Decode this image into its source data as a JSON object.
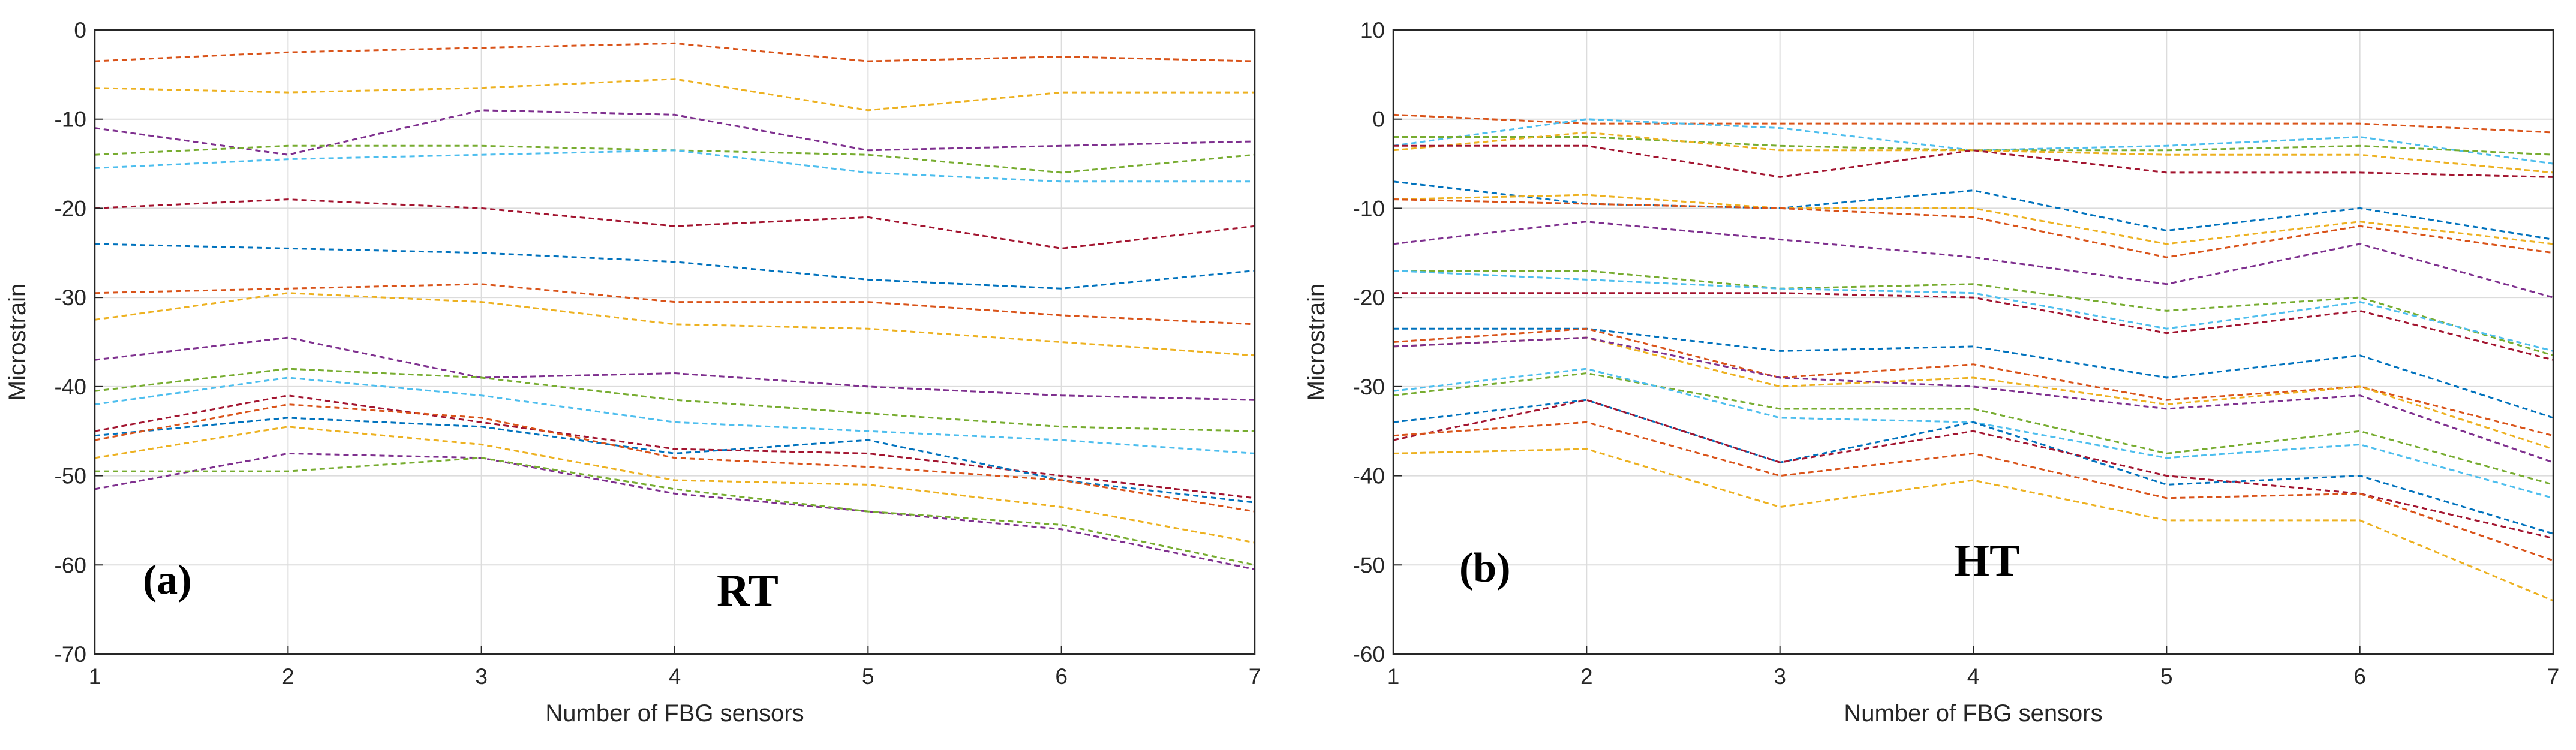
{
  "chart_data": [
    {
      "type": "line",
      "panel_label": "(a)",
      "condition_label": "RT",
      "xlabel": "Number of FBG sensors",
      "ylabel": "Microstrain",
      "xlim": [
        1,
        7
      ],
      "ylim": [
        -70,
        0
      ],
      "x_ticks": [
        1,
        2,
        3,
        4,
        5,
        6,
        7
      ],
      "y_ticks": [
        0,
        -10,
        -20,
        -30,
        -40,
        -50,
        -60,
        -70
      ],
      "grid": true,
      "x": [
        1,
        2,
        3,
        4,
        5,
        6,
        7
      ],
      "series": [
        {
          "name": "s1",
          "color": "#0072BD",
          "values": [
            0,
            0,
            0,
            0,
            0,
            0,
            0
          ]
        },
        {
          "name": "s2",
          "color": "#D95319",
          "values": [
            -3.5,
            -2.5,
            -2,
            -1.5,
            -3.5,
            -3,
            -3.5
          ]
        },
        {
          "name": "s3",
          "color": "#EDB120",
          "values": [
            -6.5,
            -7,
            -6.5,
            -5.5,
            -9,
            -7,
            -7
          ]
        },
        {
          "name": "s4",
          "color": "#7E2F8E",
          "values": [
            -11,
            -14,
            -9,
            -9.5,
            -13.5,
            -13,
            -12.5
          ]
        },
        {
          "name": "s5",
          "color": "#77AC30",
          "values": [
            -14,
            -13,
            -13,
            -13.5,
            -14,
            -16,
            -14
          ]
        },
        {
          "name": "s6",
          "color": "#4DBEEE",
          "values": [
            -15.5,
            -14.5,
            -14,
            -13.5,
            -16,
            -17,
            -17
          ]
        },
        {
          "name": "s7",
          "color": "#A2142F",
          "values": [
            -20,
            -19,
            -20,
            -22,
            -21,
            -24.5,
            -22
          ]
        },
        {
          "name": "s8",
          "color": "#0072BD",
          "values": [
            -24,
            -24.5,
            -25,
            -26,
            -28,
            -29,
            -27
          ]
        },
        {
          "name": "s9",
          "color": "#D95319",
          "values": [
            -29.5,
            -29,
            -28.5,
            -30.5,
            -30.5,
            -32,
            -33
          ]
        },
        {
          "name": "s10",
          "color": "#EDB120",
          "values": [
            -32.5,
            -29.5,
            -30.5,
            -33,
            -33.5,
            -35,
            -36.5
          ]
        },
        {
          "name": "s11",
          "color": "#7E2F8E",
          "values": [
            -37,
            -34.5,
            -39,
            -38.5,
            -40,
            -41,
            -41.5
          ]
        },
        {
          "name": "s12",
          "color": "#77AC30",
          "values": [
            -40.5,
            -38,
            -39,
            -41.5,
            -43,
            -44.5,
            -45
          ]
        },
        {
          "name": "s13",
          "color": "#4DBEEE",
          "values": [
            -42,
            -39,
            -41,
            -44,
            -45,
            -46,
            -47.5
          ]
        },
        {
          "name": "s14",
          "color": "#A2142F",
          "values": [
            -45,
            -41,
            -44,
            -47,
            -47.5,
            -50,
            -52.5
          ]
        },
        {
          "name": "s15",
          "color": "#0072BD",
          "values": [
            -45.5,
            -43.5,
            -44.5,
            -47.5,
            -46,
            -50.5,
            -53
          ]
        },
        {
          "name": "s16",
          "color": "#D95319",
          "values": [
            -46,
            -42,
            -43.5,
            -48,
            -49,
            -50.5,
            -54
          ]
        },
        {
          "name": "s17",
          "color": "#EDB120",
          "values": [
            -48,
            -44.5,
            -46.5,
            -50.5,
            -51,
            -53.5,
            -57.5
          ]
        },
        {
          "name": "s18",
          "color": "#7E2F8E",
          "values": [
            -51.5,
            -47.5,
            -48,
            -52,
            -54,
            -56,
            -60.5
          ]
        },
        {
          "name": "s19",
          "color": "#77AC30",
          "values": [
            -49.5,
            -49.5,
            -48,
            -51.5,
            -54,
            -55.5,
            -60
          ]
        }
      ]
    },
    {
      "type": "line",
      "panel_label": "(b)",
      "condition_label": "HT",
      "xlabel": "Number of FBG sensors",
      "ylabel": "Microstrain",
      "xlim": [
        1,
        7
      ],
      "ylim": [
        -60,
        10
      ],
      "x_ticks": [
        1,
        2,
        3,
        4,
        5,
        6,
        7
      ],
      "y_ticks": [
        10,
        0,
        -10,
        -20,
        -30,
        -40,
        -50,
        -60
      ],
      "grid": true,
      "x": [
        1,
        2,
        3,
        4,
        5,
        6,
        7
      ],
      "series": [
        {
          "name": "s1",
          "color": "#D95319",
          "values": [
            0.5,
            -0.5,
            -0.5,
            -0.5,
            -0.5,
            -0.5,
            -1.5
          ]
        },
        {
          "name": "s2",
          "color": "#4DBEEE",
          "values": [
            -3,
            0,
            -1,
            -3.5,
            -3,
            -2,
            -5
          ]
        },
        {
          "name": "s3",
          "color": "#77AC30",
          "values": [
            -2,
            -2,
            -3,
            -3.5,
            -3.5,
            -3,
            -4
          ]
        },
        {
          "name": "s4",
          "color": "#EDB120",
          "values": [
            -3.5,
            -1.5,
            -3.5,
            -3.5,
            -4,
            -4,
            -6
          ]
        },
        {
          "name": "s5",
          "color": "#A2142F",
          "values": [
            -3,
            -3,
            -6.5,
            -3.5,
            -6,
            -6,
            -6.5
          ]
        },
        {
          "name": "s6",
          "color": "#0072BD",
          "values": [
            -7,
            -9.5,
            -10,
            -8,
            -12.5,
            -10,
            -13.5
          ]
        },
        {
          "name": "s7",
          "color": "#EDB120",
          "values": [
            -9,
            -8.5,
            -10,
            -10,
            -14,
            -11.5,
            -14
          ]
        },
        {
          "name": "s8",
          "color": "#D95319",
          "values": [
            -9,
            -9.5,
            -10,
            -11,
            -15.5,
            -12,
            -15
          ]
        },
        {
          "name": "s9",
          "color": "#7E2F8E",
          "values": [
            -14,
            -11.5,
            -13.5,
            -15.5,
            -18.5,
            -14,
            -20
          ]
        },
        {
          "name": "s10",
          "color": "#77AC30",
          "values": [
            -17,
            -17,
            -19,
            -18.5,
            -21.5,
            -20,
            -26.5
          ]
        },
        {
          "name": "s11",
          "color": "#4DBEEE",
          "values": [
            -17,
            -18,
            -19,
            -19.5,
            -23.5,
            -20.5,
            -26
          ]
        },
        {
          "name": "s12",
          "color": "#A2142F",
          "values": [
            -19.5,
            -19.5,
            -19.5,
            -20,
            -24,
            -21.5,
            -27
          ]
        },
        {
          "name": "s13",
          "color": "#0072BD",
          "values": [
            -23.5,
            -23.5,
            -26,
            -25.5,
            -29,
            -26.5,
            -33.5
          ]
        },
        {
          "name": "s14",
          "color": "#D95319",
          "values": [
            -25,
            -23.5,
            -29,
            -27.5,
            -31.5,
            -30,
            -35.5
          ]
        },
        {
          "name": "s15",
          "color": "#EDB120",
          "values": [
            -25.5,
            -24.5,
            -30,
            -29,
            -32,
            -30,
            -37
          ]
        },
        {
          "name": "s16",
          "color": "#7E2F8E",
          "values": [
            -25.5,
            -24.5,
            -29,
            -30,
            -32.5,
            -31,
            -38.5
          ]
        },
        {
          "name": "s17",
          "color": "#77AC30",
          "values": [
            -31,
            -28.5,
            -32.5,
            -32.5,
            -37.5,
            -35,
            -41
          ]
        },
        {
          "name": "s18",
          "color": "#4DBEEE",
          "values": [
            -30.5,
            -28,
            -33.5,
            -34,
            -38,
            -36.5,
            -42.5
          ]
        },
        {
          "name": "s19",
          "color": "#0072BD",
          "values": [
            -34,
            -31.5,
            -38.5,
            -34,
            -41,
            -40,
            -46.5
          ]
        },
        {
          "name": "s20",
          "color": "#A2142F",
          "values": [
            -36,
            -31.5,
            -38.5,
            -35,
            -40,
            -42,
            -47
          ]
        },
        {
          "name": "s21",
          "color": "#D95319",
          "values": [
            -35.5,
            -34,
            -40,
            -37.5,
            -42.5,
            -42,
            -49.5
          ]
        },
        {
          "name": "s22",
          "color": "#EDB120",
          "values": [
            -37.5,
            -37,
            -43.5,
            -40.5,
            -45,
            -45,
            -54
          ]
        }
      ]
    }
  ]
}
